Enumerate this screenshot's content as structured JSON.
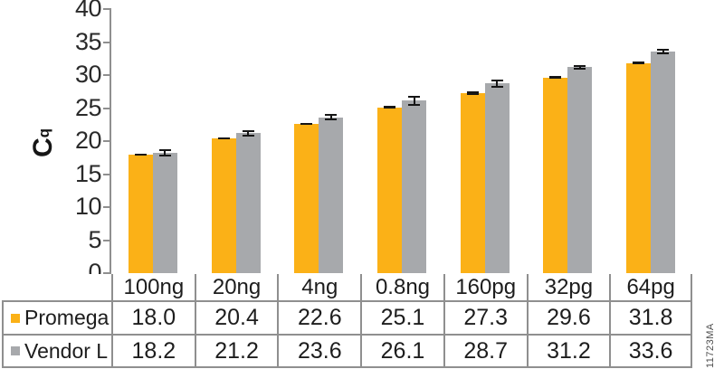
{
  "figure_id": "11723MA",
  "colors": {
    "promega_bar": "#FBB117",
    "vendor_bar": "#A7A9AC",
    "axis_gray": "#8F8F8F",
    "error_bar": "#161616",
    "text": "#1D1D1D"
  },
  "y_axis": {
    "label_main": "C",
    "label_sub": "q",
    "ticks": [
      0,
      5,
      10,
      15,
      20,
      25,
      30,
      35,
      40
    ]
  },
  "chart_data": {
    "type": "bar",
    "title": "",
    "xlabel": "",
    "ylabel": "Cq",
    "ylim": [
      0,
      40
    ],
    "ytick_step": 5,
    "grid": false,
    "legend_position": "table-left",
    "error_bars": true,
    "categories": [
      "100ng",
      "20ng",
      "4ng",
      "0.8ng",
      "160pg",
      "32pg",
      "64pg"
    ],
    "series": [
      {
        "name": "Promega",
        "color": "#FBB117",
        "values": [
          18.0,
          20.4,
          22.6,
          25.1,
          27.3,
          29.6,
          31.8
        ],
        "errors": [
          0.15,
          0.15,
          0.2,
          0.2,
          0.25,
          0.2,
          0.2
        ]
      },
      {
        "name": "Vendor L",
        "color": "#A7A9AC",
        "values": [
          18.2,
          21.2,
          23.6,
          26.1,
          28.7,
          31.2,
          33.6
        ],
        "errors": [
          0.5,
          0.45,
          0.5,
          0.7,
          0.6,
          0.35,
          0.4
        ]
      }
    ]
  }
}
